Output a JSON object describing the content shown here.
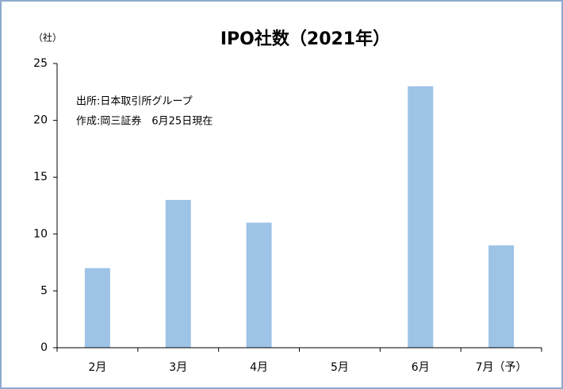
{
  "chart_data": {
    "type": "bar",
    "title": "IPO社数（2021年）",
    "y_unit": "（社）",
    "annotations": [
      "出所:日本取引所グループ",
      "作成:岡三証券　6月25日現在"
    ],
    "categories": [
      "2月",
      "3月",
      "4月",
      "5月",
      "6月",
      "7月（予）"
    ],
    "values": [
      7,
      13,
      11,
      0,
      23,
      9
    ],
    "color": "#9dc3e6",
    "ylim": [
      0,
      25
    ],
    "yticks": [
      0,
      5,
      10,
      15,
      20,
      25
    ],
    "grid": false
  }
}
